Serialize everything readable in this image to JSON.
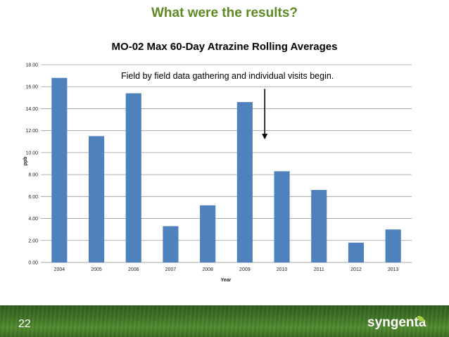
{
  "slide": {
    "title": "What were the results?",
    "page_number": "22",
    "logo_text": "syngenta",
    "annotation": "Field by field data gathering and individual visits begin."
  },
  "colors": {
    "bar": "#4f81bd",
    "title": "#5e8a23",
    "footer": "#3d6f24"
  },
  "chart_data": {
    "type": "bar",
    "title": "MO-02 Max 60-Day Atrazine Rolling Averages",
    "xlabel": "Year",
    "ylabel": "ppb",
    "categories": [
      "2004",
      "2005",
      "2006",
      "2007",
      "2008",
      "2009",
      "2010",
      "2011",
      "2012",
      "2013"
    ],
    "values": [
      16.8,
      11.5,
      15.4,
      3.3,
      5.2,
      14.6,
      8.3,
      6.6,
      1.8,
      3.0
    ],
    "ylim": [
      0,
      18
    ],
    "yticks": [
      "0.00",
      "2.00",
      "4.00",
      "6.00",
      "8.00",
      "10.00",
      "12.00",
      "14.00",
      "16.00",
      "18.00"
    ],
    "grid": true,
    "legend": "none",
    "annotation_arrow": {
      "between": [
        "2009",
        "2010"
      ],
      "from_value": 15.8,
      "to_value": 11.2
    }
  }
}
